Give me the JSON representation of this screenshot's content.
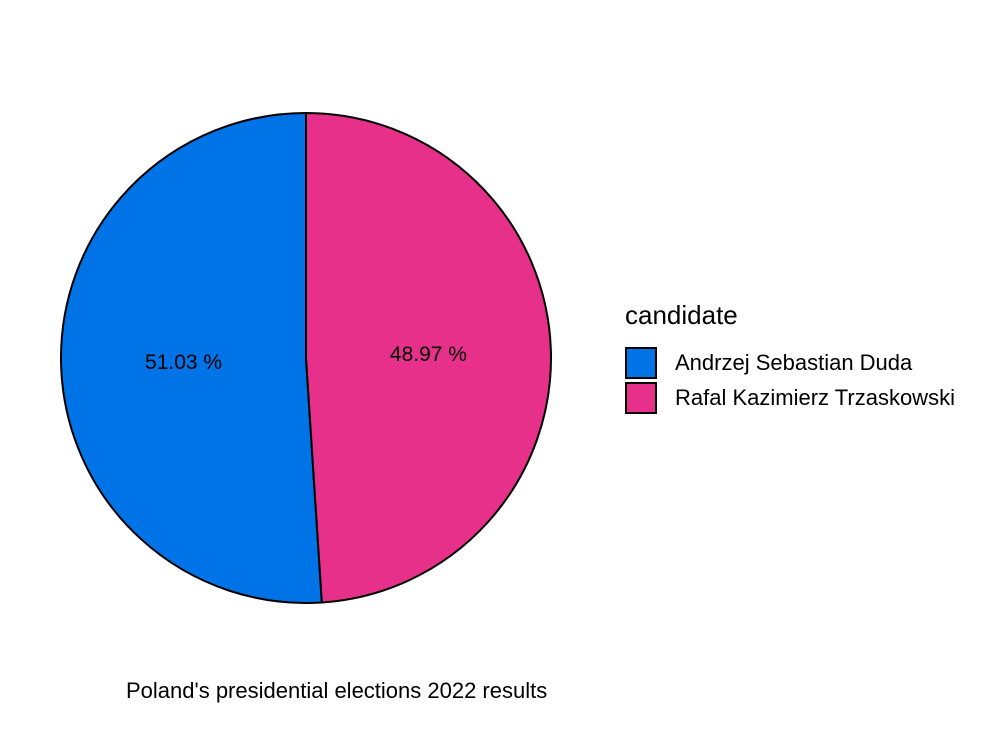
{
  "chart_data": {
    "type": "pie",
    "title": "Poland's presidential elections 2022 results",
    "legend_title": "candidate",
    "legend_position": "right",
    "grid": false,
    "slices": [
      {
        "name": "Andrzej Sebastian Duda",
        "value": 51.03,
        "label": "51.03 %",
        "color": "#0073E6"
      },
      {
        "name": "Rafal Kazimierz Trzaskowski",
        "value": 48.97,
        "label": "48.97 %",
        "color": "#E6308A"
      }
    ]
  }
}
